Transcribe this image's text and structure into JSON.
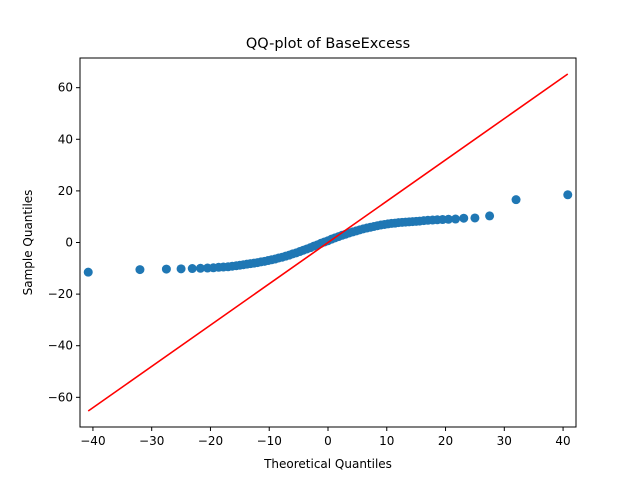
{
  "chart_data": {
    "type": "scatter",
    "title": "QQ-plot of BaseExcess",
    "xlabel": "Theoretical Quantiles",
    "ylabel": "Sample Quantiles",
    "xlim": [
      -42.2,
      42.2
    ],
    "ylim": [
      -71.5,
      71.5
    ],
    "xticks": [
      -40,
      -30,
      -20,
      -10,
      0,
      10,
      20,
      30,
      40
    ],
    "yticks": [
      -60,
      -40,
      -20,
      0,
      20,
      40,
      60
    ],
    "xtick_labels": [
      "−40",
      "−30",
      "−20",
      "−10",
      "0",
      "10",
      "20",
      "30",
      "40"
    ],
    "ytick_labels": [
      "−60",
      "−40",
      "−20",
      "0",
      "20",
      "40",
      "60"
    ],
    "grid": false,
    "colors": {
      "points": "#1f77b4",
      "line": "#ff0000"
    },
    "reference_line": {
      "x": [
        -40.8,
        40.8
      ],
      "y": [
        -65.3,
        65.3
      ]
    },
    "points": {
      "x": [
        -40.8,
        -32.0,
        -27.5,
        -25.0,
        -23.1,
        -21.7,
        -20.5,
        -19.5,
        -18.6,
        -17.8,
        -17.0,
        -16.3,
        -15.6,
        -15.0,
        -14.4,
        -13.8,
        -13.2,
        -12.6,
        -12.0,
        -11.4,
        -10.8,
        -10.2,
        -9.6,
        -9.0,
        -8.4,
        -7.8,
        -7.2,
        -6.6,
        -6.0,
        -5.4,
        -4.8,
        -4.2,
        -3.6,
        -3.0,
        -2.4,
        -1.8,
        -1.2,
        -0.6,
        0.0,
        0.6,
        1.2,
        1.8,
        2.4,
        3.0,
        3.6,
        4.2,
        4.8,
        5.4,
        6.0,
        6.6,
        7.2,
        7.8,
        8.4,
        9.0,
        9.6,
        10.2,
        10.8,
        11.4,
        12.0,
        12.6,
        13.2,
        13.8,
        14.4,
        15.0,
        15.6,
        16.3,
        17.0,
        17.8,
        18.6,
        19.5,
        20.5,
        21.7,
        23.1,
        25.0,
        27.5,
        32.0,
        40.8
      ],
      "y": [
        -11.5,
        -10.5,
        -10.3,
        -10.2,
        -10.1,
        -10.0,
        -9.9,
        -9.8,
        -9.6,
        -9.5,
        -9.4,
        -9.2,
        -9.0,
        -8.8,
        -8.6,
        -8.4,
        -8.2,
        -8.0,
        -7.8,
        -7.5,
        -7.3,
        -7.0,
        -6.7,
        -6.4,
        -6.0,
        -5.7,
        -5.3,
        -4.9,
        -4.4,
        -4.0,
        -3.5,
        -3.0,
        -2.5,
        -2.0,
        -1.4,
        -0.9,
        -0.3,
        0.2,
        0.7,
        1.3,
        1.8,
        2.3,
        2.8,
        3.2,
        3.7,
        4.1,
        4.5,
        4.9,
        5.3,
        5.6,
        5.9,
        6.2,
        6.5,
        6.8,
        7.0,
        7.2,
        7.4,
        7.5,
        7.7,
        7.8,
        7.9,
        8.0,
        8.1,
        8.2,
        8.3,
        8.5,
        8.6,
        8.7,
        8.8,
        8.9,
        9.0,
        9.1,
        9.4,
        9.5,
        10.3,
        16.6,
        18.5
      ]
    }
  }
}
